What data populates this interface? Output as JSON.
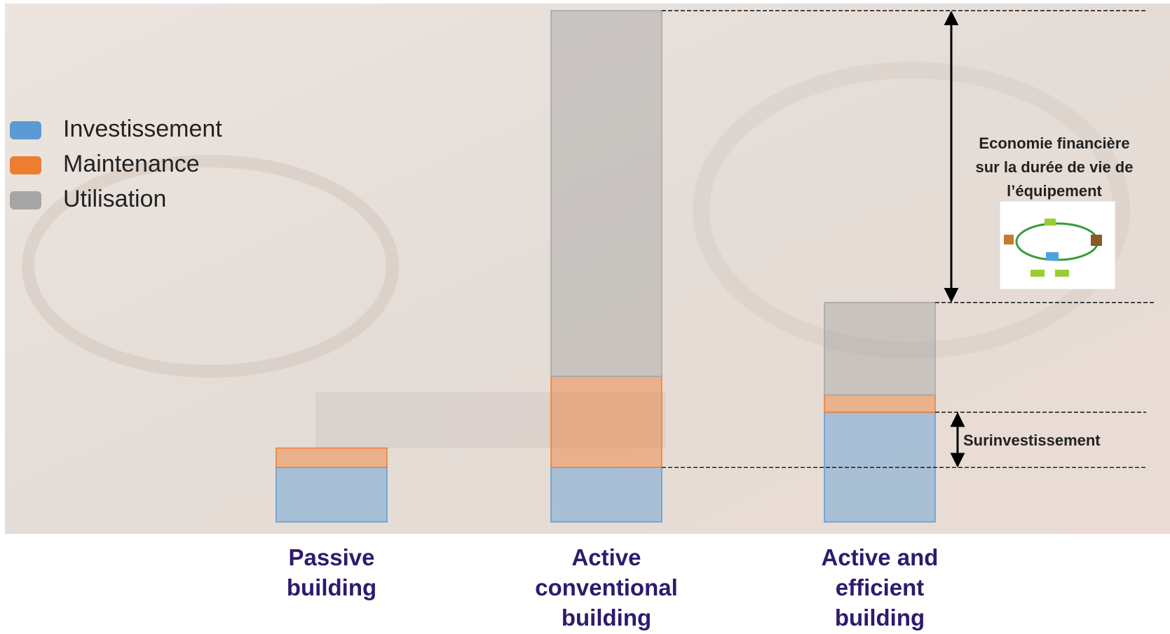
{
  "chart_data": {
    "type": "bar",
    "stacked": true,
    "categories": [
      "Passive building",
      "Active conventional building",
      "Active and efficient building"
    ],
    "series": [
      {
        "name": "Investissement",
        "color": "#5b9bd5",
        "values": [
          73,
          73,
          147
        ]
      },
      {
        "name": "Maintenance",
        "color": "#ed7d31",
        "values": [
          26,
          122,
          23
        ]
      },
      {
        "name": "Utilisation",
        "color": "#a5a5a5",
        "values": [
          0,
          490,
          124
        ]
      }
    ],
    "ylim": [
      0,
      690
    ],
    "annotations": [
      "Economie financière sur la durée de vie de l’équipement",
      "Surinvestissement"
    ]
  }
}
